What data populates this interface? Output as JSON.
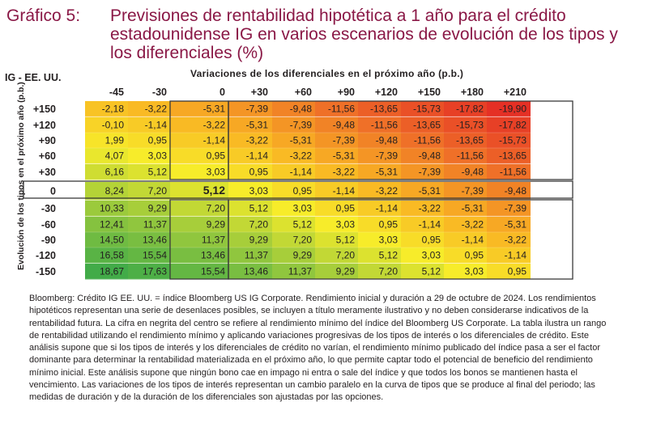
{
  "title_prefix": "Gráfico 5:",
  "title": "Previsiones de rentabilidad hipotética a 1 año para el crédito estadounidense IG en varios escenarios de evolución de los tipos y los diferenciales (%)",
  "region_label": "IG - EE. UU.",
  "footnote": "Bloomberg: Crédito IG EE. UU. = índice Bloomberg US IG Corporate. Rendimiento inicial y duración a 29 de octubre de 2024. Los rendimientos hipotéticos representan una serie de desenlaces posibles, se incluyen a título meramente ilustrativo y no deben considerarse indicativos de la rentabilidad futura. La cifra en negrita del centro se refiere al rendimiento mínimo del índice del Bloomberg US Corporate. La tabla ilustra un rango de rentabilidad utilizando el rendimiento mínimo y aplicando variaciones progresivas de los tipos de interés o los diferenciales de crédito. Este análisis supone que si los tipos de interés y los diferenciales de crédito no varían, el rendimiento mínimo publicado del índice pasa a ser el factor dominante para determinar la rentabilidad materializada en el próximo año, lo que permite captar todo el potencial de beneficio del rendimiento mínimo inicial. Este análisis supone que ningún bono cae en impago ni entra o sale del índice y que todos los bonos se mantienen hasta el vencimiento. Las variaciones de los tipos de interés representan un cambio paralelo en la curva de tipos que se produce al final del periodo; las medidas de duración y de la duración de los diferenciales son ajustadas por las opciones.",
  "chart_data": {
    "type": "heatmap",
    "xlabel": "Variaciones de los diferenciales en el próximo año (p.b.)",
    "ylabel": "Evolución de los tipos en el próximo año (p.b.)",
    "x": [
      "-45",
      "-30",
      "0",
      "+30",
      "+60",
      "+90",
      "+120",
      "+150",
      "+180",
      "+210"
    ],
    "y": [
      "+150",
      "+120",
      "+90",
      "+60",
      "+30",
      "0",
      "-30",
      "-60",
      "-90",
      "-120",
      "-150"
    ],
    "values": [
      [
        "-2,18",
        "-3,22",
        "-5,31",
        "-7,39",
        "-9,48",
        "-11,56",
        "-13,65",
        "-15,73",
        "-17,82",
        "-19,90"
      ],
      [
        "-0,10",
        "-1,14",
        "-3,22",
        "-5,31",
        "-7,39",
        "-9,48",
        "-11,56",
        "-13,65",
        "-15,73",
        "-17,82"
      ],
      [
        "1,99",
        "0,95",
        "-1,14",
        "-3,22",
        "-5,31",
        "-7,39",
        "-9,48",
        "-11,56",
        "-13,65",
        "-15,73"
      ],
      [
        "4,07",
        "3,03",
        "0,95",
        "-1,14",
        "-3,22",
        "-5,31",
        "-7,39",
        "-9,48",
        "-11,56",
        "-13,65"
      ],
      [
        "6,16",
        "5,12",
        "3,03",
        "0,95",
        "-1,14",
        "-3,22",
        "-5,31",
        "-7,39",
        "-9,48",
        "-11,56"
      ],
      [
        "8,24",
        "7,20",
        "5,12",
        "3,03",
        "0,95",
        "-1,14",
        "-3,22",
        "-5,31",
        "-7,39",
        "-9,48"
      ],
      [
        "10,33",
        "9,29",
        "7,20",
        "5,12",
        "3,03",
        "0,95",
        "-1,14",
        "-3,22",
        "-5,31",
        "-7,39"
      ],
      [
        "12,41",
        "11,37",
        "9,29",
        "7,20",
        "5,12",
        "3,03",
        "0,95",
        "-1,14",
        "-3,22",
        "-5,31"
      ],
      [
        "14,50",
        "13,46",
        "11,37",
        "9,29",
        "7,20",
        "5,12",
        "3,03",
        "0,95",
        "-1,14",
        "-3,22"
      ],
      [
        "16,58",
        "15,54",
        "13,46",
        "11,37",
        "9,29",
        "7,20",
        "5,12",
        "3,03",
        "0,95",
        "-1,14"
      ],
      [
        "18,67",
        "17,63",
        "15,54",
        "13,46",
        "11,37",
        "9,29",
        "7,20",
        "5,12",
        "3,03",
        "0,95"
      ]
    ],
    "highlight": {
      "row": "0",
      "col": "0",
      "bold": true
    },
    "colors": {
      "title": "#8a1846",
      "high": "#3faa48",
      "mid": "#f7ec2a",
      "low": "#e52f25"
    }
  }
}
